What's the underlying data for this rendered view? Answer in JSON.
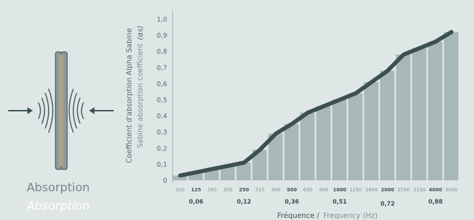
{
  "left_panel": {
    "title": "Absorption",
    "subtitle": "Absorption"
  },
  "colors": {
    "background": "#dfe7e6",
    "bar": "#a8b8b9",
    "line": "#3d5051",
    "text": "#56686b"
  },
  "chart_data": {
    "type": "bar",
    "title": "",
    "ylabel_primary": "Coefficient d'absorption Alpha Sabine",
    "ylabel_secondary": "Sabine absorption coefficient",
    "ysymbol": "(αs)",
    "xlabel_primary": "Fréquence /",
    "xlabel_secondary": "Frequency (Hz)",
    "categories": [
      "100",
      "125",
      "160",
      "200",
      "250",
      "315",
      "400",
      "500",
      "630",
      "800",
      "1000",
      "1250",
      "1600",
      "2000",
      "2500",
      "3150",
      "4000",
      "5000"
    ],
    "bold_categories": [
      "125",
      "250",
      "500",
      "1000",
      "2000",
      "4000"
    ],
    "values": [
      0.03,
      0.05,
      0.07,
      0.09,
      0.11,
      0.19,
      0.29,
      0.35,
      0.42,
      0.46,
      0.5,
      0.54,
      0.61,
      0.68,
      0.78,
      0.82,
      0.86,
      0.92
    ],
    "line_values": [
      0.03,
      0.05,
      0.07,
      0.09,
      0.11,
      0.19,
      0.29,
      0.35,
      0.42,
      0.46,
      0.5,
      0.54,
      0.61,
      0.68,
      0.78,
      0.82,
      0.86,
      0.92
    ],
    "octave_values": [
      {
        "label": "0,06",
        "category": "125"
      },
      {
        "label": "0,12",
        "category": "250"
      },
      {
        "label": "0,36",
        "category": "500"
      },
      {
        "label": "0,51",
        "category": "1000"
      },
      {
        "label": "0,72",
        "category": "2000"
      },
      {
        "label": "0,88",
        "category": "4000"
      }
    ],
    "yticks": [
      "0",
      "0,1",
      "0,2",
      "0,3",
      "0,4",
      "0,5",
      "0,6",
      "0,7",
      "0,8",
      "0,9",
      "1,0"
    ],
    "ylim": [
      0,
      1.0
    ],
    "grid": false,
    "legend": "none"
  }
}
